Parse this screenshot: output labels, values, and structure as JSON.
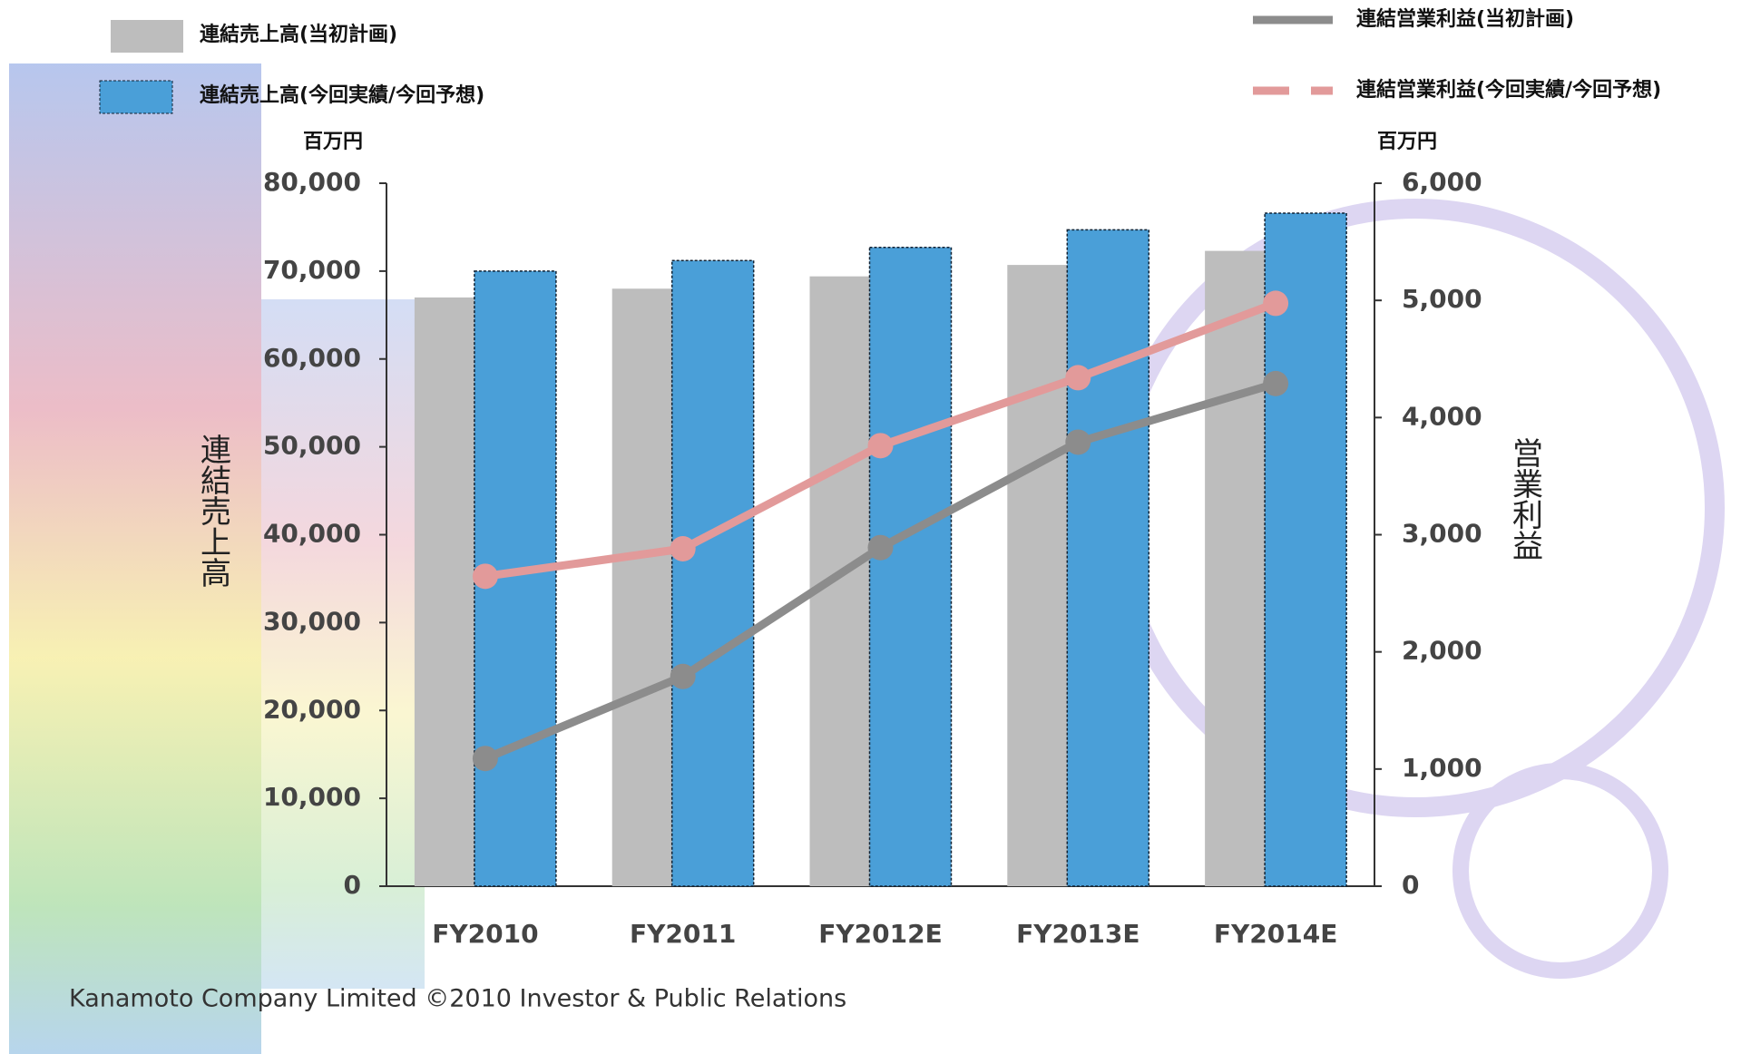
{
  "chart_data": {
    "type": "bar",
    "categories": [
      "FY2010",
      "FY2011",
      "FY2012E",
      "FY2013E",
      "FY2014E"
    ],
    "series": [
      {
        "name": "連結売上高(当初計画)",
        "type": "bar",
        "color": "#bdbdbd",
        "values": [
          67000,
          68000,
          69400,
          70700,
          72300
        ]
      },
      {
        "name": "連結売上高(今回実績/今回予想)",
        "type": "bar",
        "color": "#4a9fd8",
        "values": [
          70000,
          71200,
          72700,
          74700,
          76600
        ]
      },
      {
        "name": "連結営業利益(当初計画)",
        "type": "line",
        "axis": "y2",
        "color": "#8c8c8c",
        "values": [
          1090,
          1790,
          2890,
          3790,
          4290
        ]
      },
      {
        "name": "連結営業利益(今回実績/今回予想)",
        "type": "line",
        "axis": "y2",
        "color": "#e29a9a",
        "values": [
          2645,
          2880,
          3760,
          4340,
          4975
        ]
      }
    ],
    "y_label": "連結売上高",
    "y2_label": "営業利益",
    "y_unit": "百万円",
    "y2_unit": "百万円",
    "ylim": [
      0,
      80000
    ],
    "yticks": [
      0,
      {
        "value": 10000,
        "label": "10,000"
      },
      {
        "value": 20000,
        "label": "20,000"
      },
      {
        "value": 30000,
        "label": "30,000"
      },
      {
        "value": 40000,
        "label": "40,000"
      },
      {
        "value": 50000,
        "label": "50,000"
      },
      {
        "value": 60000,
        "label": "60,000"
      },
      {
        "value": 70000,
        "label": "70,000"
      },
      {
        "value": 80000,
        "label": "80,000"
      }
    ],
    "y2lim": [
      0,
      6000
    ],
    "y2ticks": [
      0,
      {
        "value": 1000,
        "label": "1,000"
      },
      {
        "value": 2000,
        "label": "2,000"
      },
      {
        "value": 3000,
        "label": "3,000"
      },
      {
        "value": 4000,
        "label": "4,000"
      },
      {
        "value": 5000,
        "label": "5,000"
      },
      {
        "value": 6000,
        "label": "6,000"
      }
    ]
  },
  "footer": "Kanamoto Company Limited ©2010 Investor & Public Relations"
}
